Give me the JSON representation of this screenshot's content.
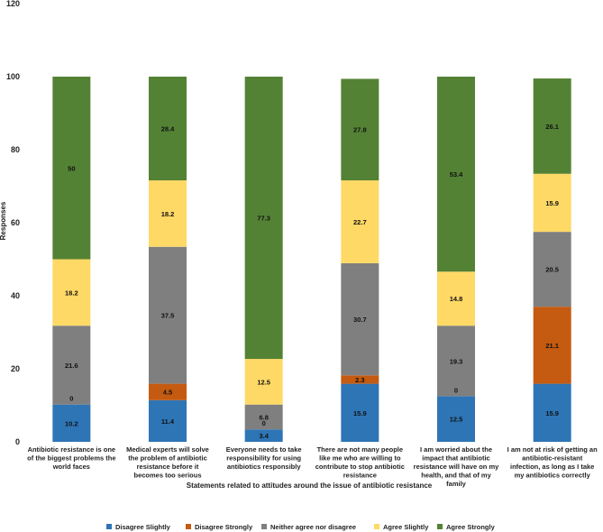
{
  "chart_data": {
    "type": "bar",
    "stacked": true,
    "title": "",
    "xlabel": "Statements related to attitudes around the issue of antibiotic resistance",
    "ylabel": "Responses",
    "ylim": [
      0,
      120
    ],
    "yticks": [
      0,
      20,
      40,
      60,
      80,
      100,
      120
    ],
    "legend_position": "bottom",
    "categories": [
      [
        "Antibiotic resistance is one",
        "of the biggest problems the",
        "world faces"
      ],
      [
        "Medical experts will solve",
        "the problem of antibiotic",
        "resistance before it",
        "becomes too serious"
      ],
      [
        "Everyone needs to take",
        "responsibility for using",
        "antibiotics responsibly"
      ],
      [
        "There are not many people",
        "like me who are willing to",
        "contribute to stop antibiotic",
        "resistance"
      ],
      [
        "I am worried about the",
        "impact that antibiotic",
        "resistance will have on my",
        "health, and that of my",
        "family"
      ],
      [
        "I am not at risk of getting an",
        "antibiotic-resistant",
        "infection, as long as I take",
        "my antibiotics correctly"
      ]
    ],
    "series": [
      {
        "name": "Disagree Slightly",
        "color": "#2E75B6",
        "values": [
          10.2,
          11.4,
          3.4,
          15.9,
          12.5,
          15.9
        ],
        "labels": [
          "10.2",
          "11.4",
          "3.4",
          "15.9",
          "12.5",
          "15.9"
        ]
      },
      {
        "name": "Disagree Strongly",
        "color": "#C55A11",
        "values": [
          0,
          4.5,
          0,
          2.3,
          0,
          21.1
        ],
        "labels": [
          "0",
          "4.5",
          "0",
          "2.3",
          "0",
          "21.1"
        ]
      },
      {
        "name": "Neither agree nor disagree",
        "color": "#7F7F7F",
        "values": [
          21.6,
          37.5,
          6.8,
          30.7,
          19.3,
          20.5
        ],
        "labels": [
          "21.6",
          "37.5",
          "6.8",
          "30.7",
          "19.3",
          "20.5"
        ]
      },
      {
        "name": "Agree Slightly",
        "color": "#FFD966",
        "values": [
          18.2,
          18.2,
          12.5,
          22.7,
          14.8,
          15.9
        ],
        "labels": [
          "18.2",
          "18.2",
          "12.5",
          "22.7",
          "14.8",
          "15.9"
        ]
      },
      {
        "name": "Agree Strongly",
        "color": "#548235",
        "values": [
          50,
          28.4,
          77.3,
          27.8,
          53.4,
          26.1
        ],
        "labels": [
          "50",
          "28.4",
          "77.3",
          "27.8",
          "53.4",
          "26.1"
        ]
      }
    ]
  }
}
